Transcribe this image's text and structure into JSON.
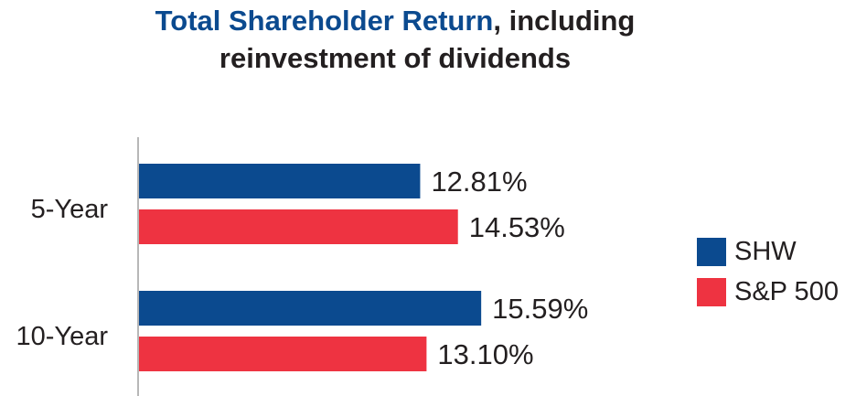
{
  "title": {
    "part1": "Total Shareholder Return",
    "part2": ", including",
    "line2": "reinvestment of dividends"
  },
  "colors": {
    "shw": "#0b4a8f",
    "sp500": "#ee3341",
    "axis": "#b7b7b7",
    "text": "#231f20"
  },
  "chart_data": {
    "type": "bar",
    "orientation": "horizontal",
    "title": "Total Shareholder Return, including reinvestment of dividends",
    "categories": [
      "5-Year",
      "10-Year"
    ],
    "series": [
      {
        "name": "SHW",
        "values": [
          12.81,
          15.59
        ],
        "labels": [
          "12.81%",
          "15.59%"
        ]
      },
      {
        "name": "S&P 500",
        "values": [
          14.53,
          13.1
        ],
        "labels": [
          "14.53%",
          "13.10%"
        ]
      }
    ],
    "xlim": [
      0,
      20
    ],
    "grid": false,
    "legend": "right"
  }
}
